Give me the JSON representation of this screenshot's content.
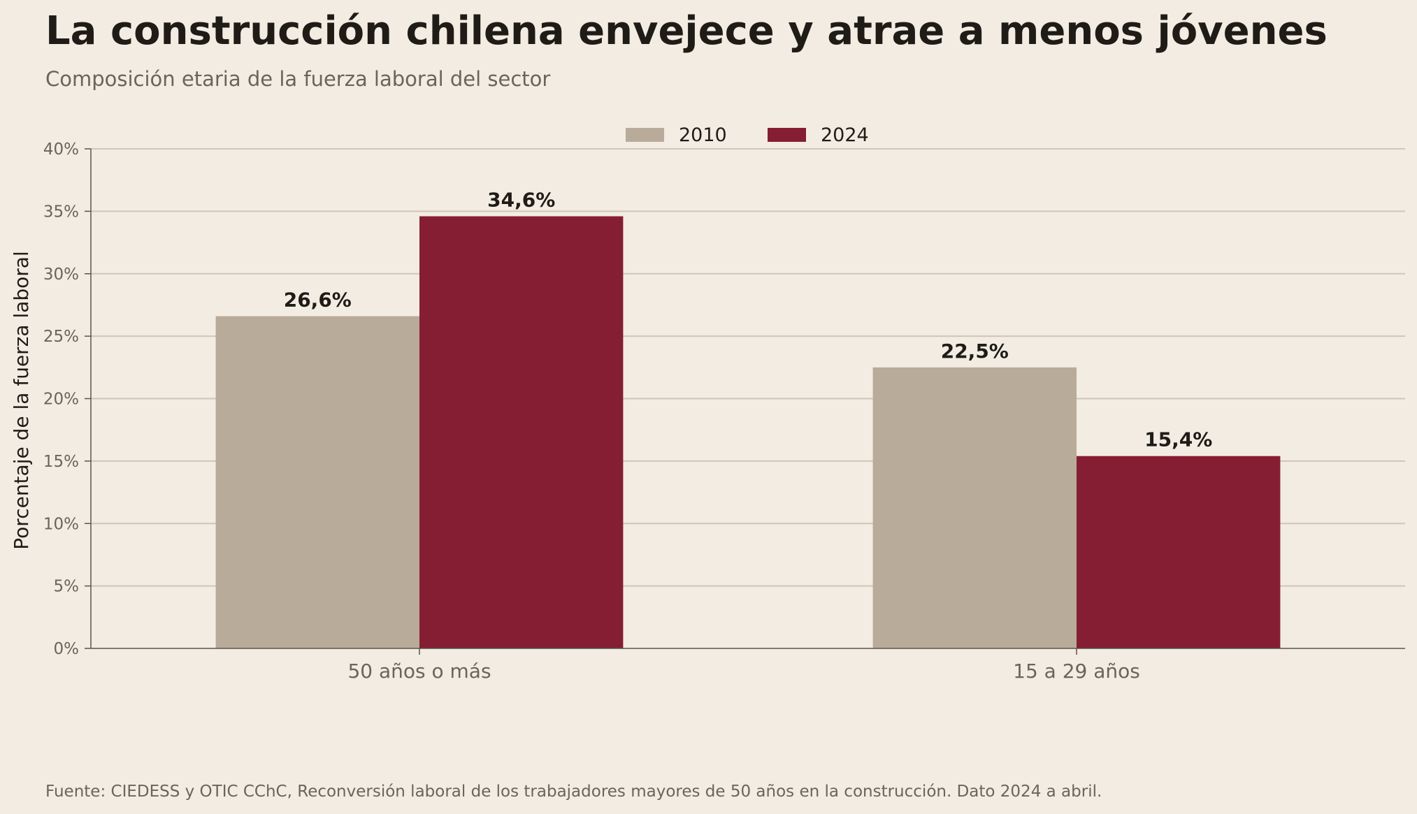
{
  "title": "La construcción chilena envejece y atrae a menos jóvenes",
  "subtitle": "Composición etaria de la fuerza laboral del sector",
  "source": "Fuente: CIEDESS y OTIC CChC, Reconversión laboral de los trabajadores mayores de 50 años en la construcción. Dato 2024 a abril.",
  "colors": {
    "background": "#f3ece2",
    "series_2010": "#b8ab9a",
    "series_2024": "#851e32",
    "grid": "#cfc6b8",
    "axis": "#5a544c"
  },
  "chart_data": {
    "type": "bar",
    "categories": [
      "50 años o más",
      "15 a 29 años"
    ],
    "series": [
      {
        "name": "2010",
        "values": [
          26.6,
          22.5
        ],
        "labels": [
          "26,6%",
          "22,5%"
        ]
      },
      {
        "name": "2024",
        "values": [
          34.6,
          15.4
        ],
        "labels": [
          "34,6%",
          "15,4%"
        ]
      }
    ],
    "ylabel": "Porcentaje de la fuerza laboral",
    "ylim": [
      0,
      40
    ],
    "yticks": [
      0,
      5,
      10,
      15,
      20,
      25,
      30,
      35,
      40
    ],
    "ytick_labels": [
      "0%",
      "5%",
      "10%",
      "15%",
      "20%",
      "25%",
      "30%",
      "35%",
      "40%"
    ],
    "grid": true,
    "legend_position": "top-center"
  }
}
